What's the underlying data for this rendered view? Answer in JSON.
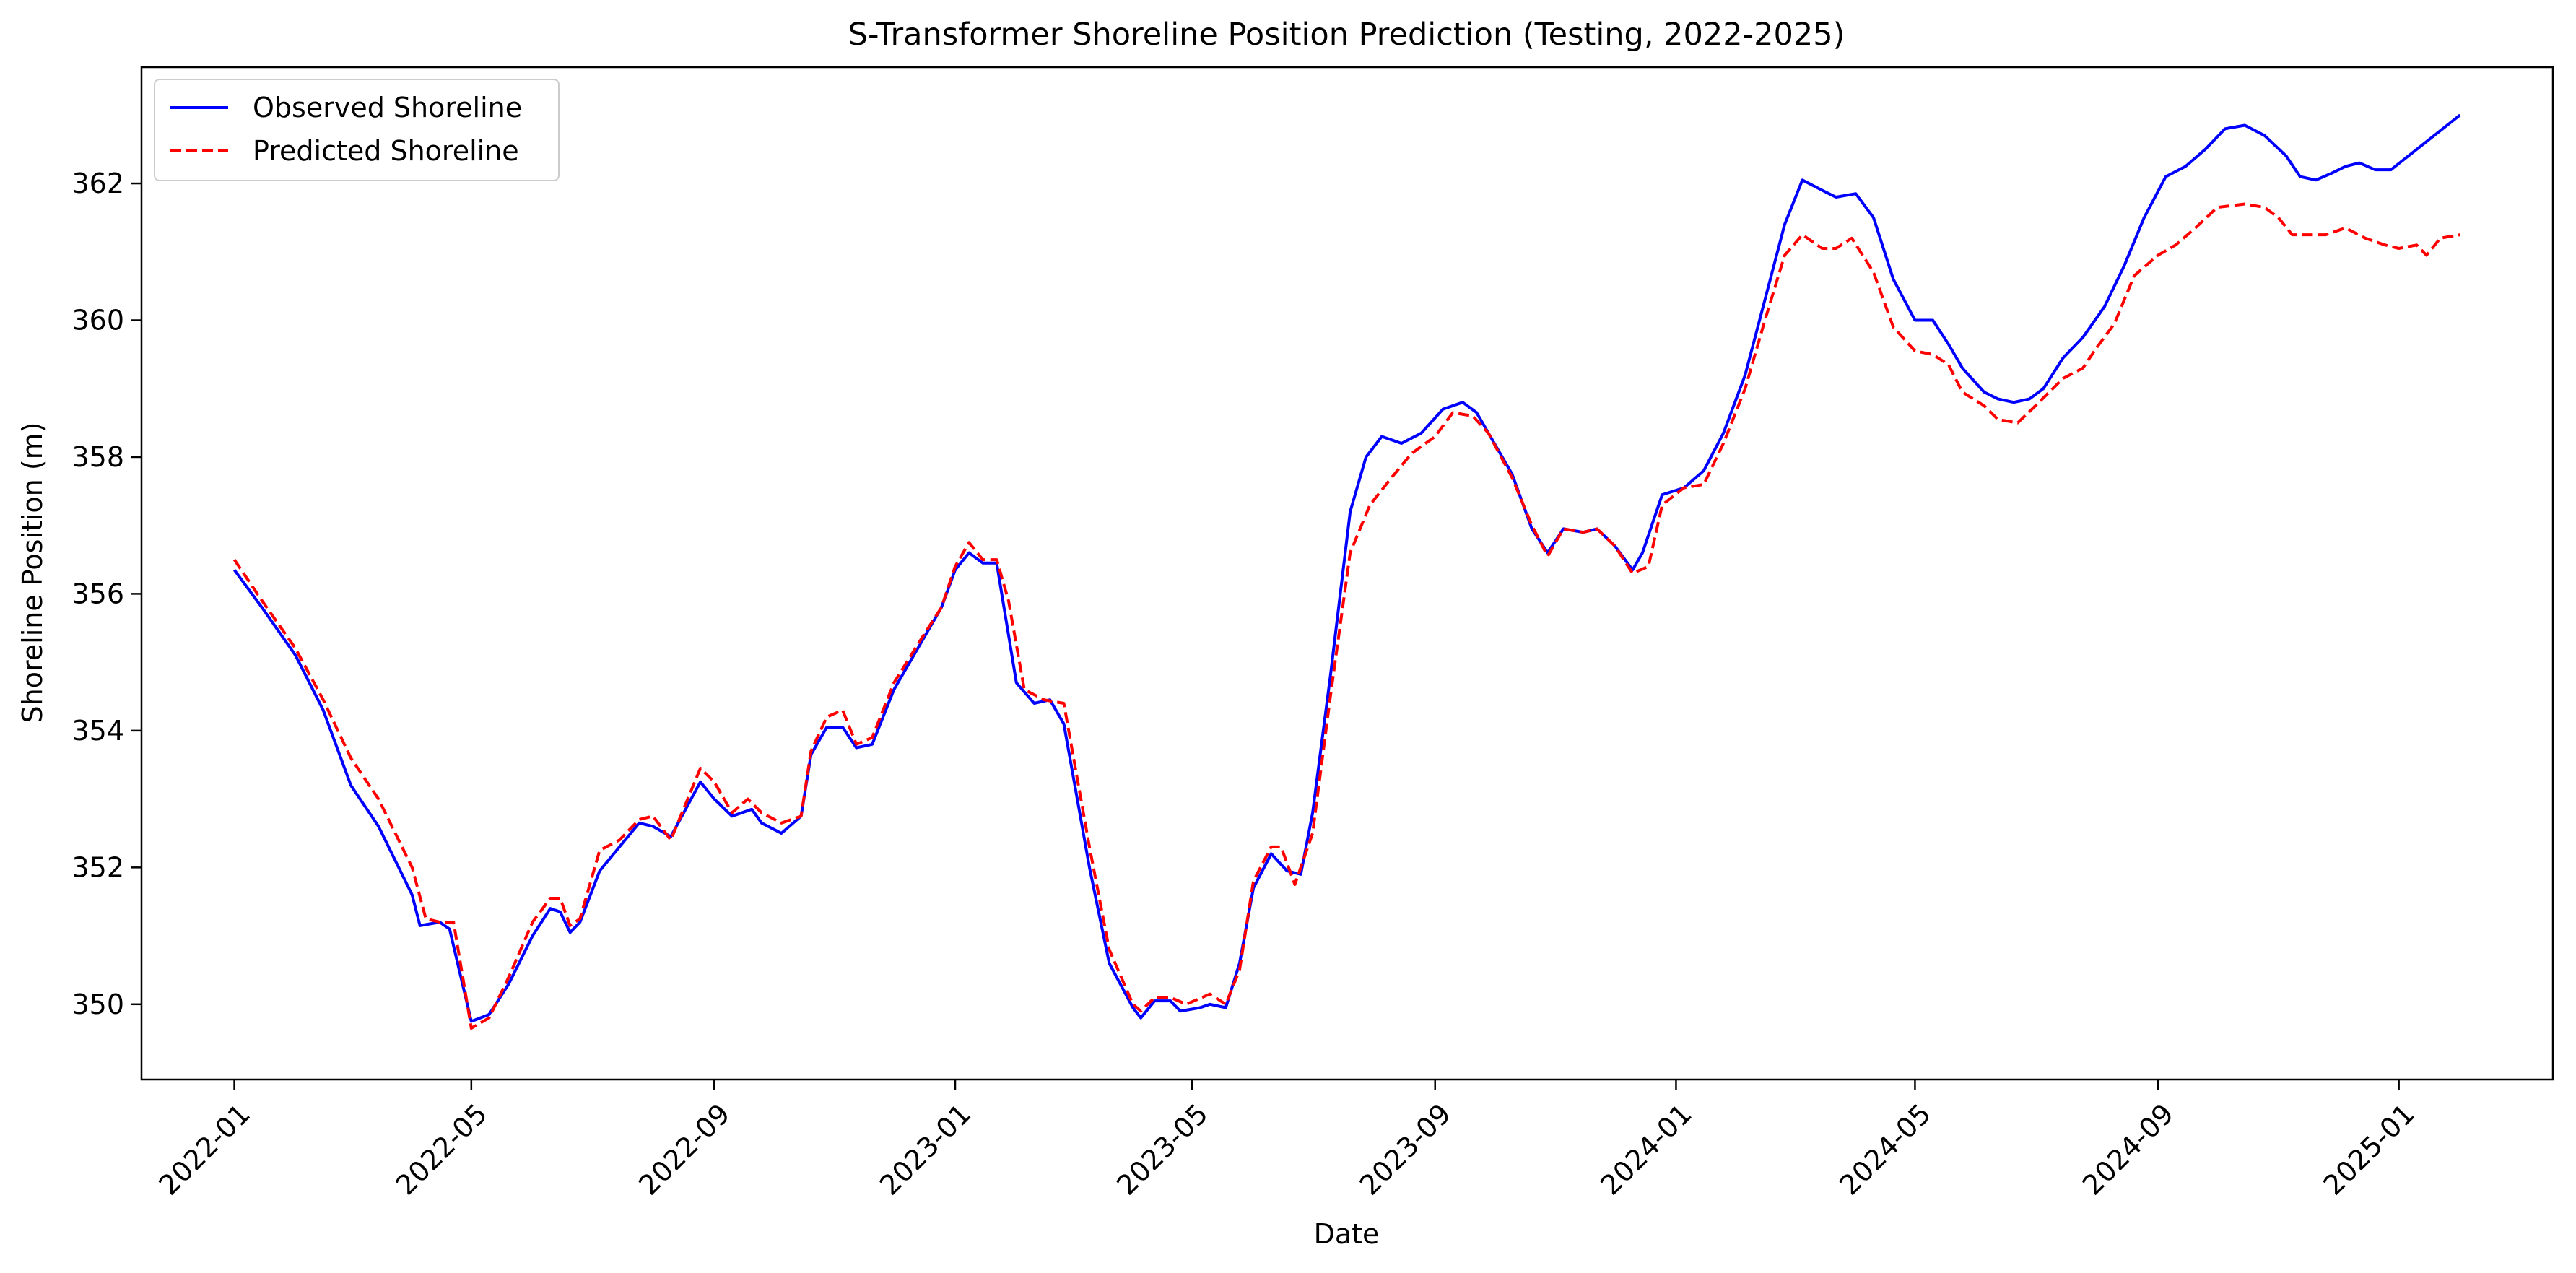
{
  "chart_data": {
    "type": "line",
    "title": "S-Transformer Shoreline Position Prediction (Testing, 2022-2025)",
    "xlabel": "Date",
    "ylabel": "Shoreline Position (m)",
    "xlim": [
      "2021-11-15",
      "2025-03-20"
    ],
    "ylim": [
      348.9,
      363.7
    ],
    "x_ticks": [
      "2022-01",
      "2022-05",
      "2022-09",
      "2023-01",
      "2023-05",
      "2023-09",
      "2024-01",
      "2024-05",
      "2024-09",
      "2025-01"
    ],
    "y_ticks": [
      350,
      352,
      354,
      356,
      358,
      360,
      362
    ],
    "grid": false,
    "legend_position": "upper-left",
    "series": [
      {
        "name": "Observed Shoreline",
        "color": "#0000ff",
        "linestyle": "solid",
        "points": [
          [
            "2022-01-01",
            356.35
          ],
          [
            "2022-01-15",
            355.8
          ],
          [
            "2022-02-01",
            355.1
          ],
          [
            "2022-02-15",
            354.3
          ],
          [
            "2022-03-01",
            353.2
          ],
          [
            "2022-03-15",
            352.6
          ],
          [
            "2022-04-01",
            351.6
          ],
          [
            "2022-04-05",
            351.15
          ],
          [
            "2022-04-15",
            351.2
          ],
          [
            "2022-04-20",
            351.1
          ],
          [
            "2022-05-01",
            349.75
          ],
          [
            "2022-05-10",
            349.85
          ],
          [
            "2022-05-20",
            350.3
          ],
          [
            "2022-06-01",
            351.0
          ],
          [
            "2022-06-10",
            351.4
          ],
          [
            "2022-06-15",
            351.35
          ],
          [
            "2022-06-20",
            351.05
          ],
          [
            "2022-06-25",
            351.2
          ],
          [
            "2022-07-05",
            351.95
          ],
          [
            "2022-07-15",
            352.3
          ],
          [
            "2022-07-25",
            352.65
          ],
          [
            "2022-08-01",
            352.6
          ],
          [
            "2022-08-10",
            352.45
          ],
          [
            "2022-08-25",
            353.25
          ],
          [
            "2022-09-01",
            353.0
          ],
          [
            "2022-09-10",
            352.75
          ],
          [
            "2022-09-20",
            352.85
          ],
          [
            "2022-09-25",
            352.65
          ],
          [
            "2022-10-05",
            352.5
          ],
          [
            "2022-10-15",
            352.75
          ],
          [
            "2022-10-20",
            353.65
          ],
          [
            "2022-10-28",
            354.05
          ],
          [
            "2022-11-05",
            354.05
          ],
          [
            "2022-11-12",
            353.75
          ],
          [
            "2022-11-20",
            353.8
          ],
          [
            "2022-12-01",
            354.6
          ],
          [
            "2022-12-15",
            355.3
          ],
          [
            "2022-12-25",
            355.8
          ],
          [
            "2023-01-01",
            356.35
          ],
          [
            "2023-01-08",
            356.6
          ],
          [
            "2023-01-15",
            356.45
          ],
          [
            "2023-01-22",
            356.45
          ],
          [
            "2023-02-01",
            354.7
          ],
          [
            "2023-02-10",
            354.4
          ],
          [
            "2023-02-18",
            354.45
          ],
          [
            "2023-02-25",
            354.1
          ],
          [
            "2023-03-10",
            352.0
          ],
          [
            "2023-03-20",
            350.6
          ],
          [
            "2023-04-01",
            349.95
          ],
          [
            "2023-04-05",
            349.8
          ],
          [
            "2023-04-12",
            350.05
          ],
          [
            "2023-04-20",
            350.05
          ],
          [
            "2023-04-25",
            349.9
          ],
          [
            "2023-05-05",
            349.95
          ],
          [
            "2023-05-10",
            350.0
          ],
          [
            "2023-05-18",
            349.95
          ],
          [
            "2023-05-25",
            350.6
          ],
          [
            "2023-06-01",
            351.7
          ],
          [
            "2023-06-10",
            352.2
          ],
          [
            "2023-06-18",
            351.95
          ],
          [
            "2023-06-25",
            351.9
          ],
          [
            "2023-07-01",
            352.8
          ],
          [
            "2023-07-10",
            354.8
          ],
          [
            "2023-07-20",
            357.2
          ],
          [
            "2023-07-28",
            358.0
          ],
          [
            "2023-08-05",
            358.3
          ],
          [
            "2023-08-15",
            358.2
          ],
          [
            "2023-08-25",
            358.35
          ],
          [
            "2023-09-05",
            358.7
          ],
          [
            "2023-09-15",
            358.8
          ],
          [
            "2023-09-22",
            358.65
          ],
          [
            "2023-10-01",
            358.2
          ],
          [
            "2023-10-10",
            357.75
          ],
          [
            "2023-10-20",
            356.95
          ],
          [
            "2023-10-28",
            356.6
          ],
          [
            "2023-11-05",
            356.95
          ],
          [
            "2023-11-15",
            356.9
          ],
          [
            "2023-11-22",
            356.95
          ],
          [
            "2023-12-01",
            356.7
          ],
          [
            "2023-12-10",
            356.35
          ],
          [
            "2023-12-15",
            356.6
          ],
          [
            "2023-12-25",
            357.45
          ],
          [
            "2024-01-05",
            357.55
          ],
          [
            "2024-01-15",
            357.8
          ],
          [
            "2024-01-25",
            358.35
          ],
          [
            "2024-02-05",
            359.2
          ],
          [
            "2024-02-15",
            360.3
          ],
          [
            "2024-02-25",
            361.4
          ],
          [
            "2024-03-05",
            362.05
          ],
          [
            "2024-03-15",
            361.9
          ],
          [
            "2024-03-22",
            361.8
          ],
          [
            "2024-04-01",
            361.85
          ],
          [
            "2024-04-10",
            361.5
          ],
          [
            "2024-04-20",
            360.6
          ],
          [
            "2024-05-01",
            360.0
          ],
          [
            "2024-05-10",
            360.0
          ],
          [
            "2024-05-18",
            359.65
          ],
          [
            "2024-05-25",
            359.3
          ],
          [
            "2024-06-05",
            358.95
          ],
          [
            "2024-06-12",
            358.85
          ],
          [
            "2024-06-20",
            358.8
          ],
          [
            "2024-06-28",
            358.85
          ],
          [
            "2024-07-05",
            359.0
          ],
          [
            "2024-07-15",
            359.45
          ],
          [
            "2024-07-25",
            359.75
          ],
          [
            "2024-08-05",
            360.2
          ],
          [
            "2024-08-15",
            360.8
          ],
          [
            "2024-08-25",
            361.5
          ],
          [
            "2024-09-05",
            362.1
          ],
          [
            "2024-09-15",
            362.25
          ],
          [
            "2024-09-25",
            362.5
          ],
          [
            "2024-10-05",
            362.8
          ],
          [
            "2024-10-15",
            362.85
          ],
          [
            "2024-10-25",
            362.7
          ],
          [
            "2024-11-05",
            362.4
          ],
          [
            "2024-11-12",
            362.1
          ],
          [
            "2024-11-20",
            362.05
          ],
          [
            "2024-11-28",
            362.15
          ],
          [
            "2024-12-05",
            362.25
          ],
          [
            "2024-12-12",
            362.3
          ],
          [
            "2024-12-20",
            362.2
          ],
          [
            "2024-12-28",
            362.2
          ],
          [
            "2025-02-01",
            363.0
          ]
        ]
      },
      {
        "name": "Predicted Shoreline",
        "color": "#ff0000",
        "linestyle": "dashed",
        "points": [
          [
            "2022-01-01",
            356.5
          ],
          [
            "2022-01-15",
            355.9
          ],
          [
            "2022-02-01",
            355.2
          ],
          [
            "2022-02-15",
            354.45
          ],
          [
            "2022-03-01",
            353.6
          ],
          [
            "2022-03-15",
            353.0
          ],
          [
            "2022-04-01",
            352.0
          ],
          [
            "2022-04-08",
            351.25
          ],
          [
            "2022-04-15",
            351.2
          ],
          [
            "2022-04-22",
            351.2
          ],
          [
            "2022-05-01",
            349.65
          ],
          [
            "2022-05-10",
            349.8
          ],
          [
            "2022-05-20",
            350.4
          ],
          [
            "2022-06-01",
            351.2
          ],
          [
            "2022-06-10",
            351.55
          ],
          [
            "2022-06-15",
            351.55
          ],
          [
            "2022-06-20",
            351.15
          ],
          [
            "2022-06-25",
            351.25
          ],
          [
            "2022-07-05",
            352.25
          ],
          [
            "2022-07-15",
            352.4
          ],
          [
            "2022-07-25",
            352.7
          ],
          [
            "2022-08-01",
            352.75
          ],
          [
            "2022-08-10",
            352.4
          ],
          [
            "2022-08-25",
            353.45
          ],
          [
            "2022-09-01",
            353.25
          ],
          [
            "2022-09-10",
            352.8
          ],
          [
            "2022-09-18",
            353.0
          ],
          [
            "2022-09-25",
            352.8
          ],
          [
            "2022-10-05",
            352.65
          ],
          [
            "2022-10-15",
            352.75
          ],
          [
            "2022-10-20",
            353.7
          ],
          [
            "2022-10-28",
            354.2
          ],
          [
            "2022-11-05",
            354.3
          ],
          [
            "2022-11-12",
            353.8
          ],
          [
            "2022-11-20",
            353.9
          ],
          [
            "2022-12-01",
            354.7
          ],
          [
            "2022-12-15",
            355.35
          ],
          [
            "2022-12-25",
            355.8
          ],
          [
            "2023-01-01",
            356.4
          ],
          [
            "2023-01-08",
            356.75
          ],
          [
            "2023-01-15",
            356.5
          ],
          [
            "2023-01-22",
            356.5
          ],
          [
            "2023-01-28",
            355.9
          ],
          [
            "2023-02-05",
            354.6
          ],
          [
            "2023-02-15",
            354.45
          ],
          [
            "2023-02-25",
            354.4
          ],
          [
            "2023-03-10",
            352.3
          ],
          [
            "2023-03-20",
            350.8
          ],
          [
            "2023-04-01",
            350.0
          ],
          [
            "2023-04-05",
            349.9
          ],
          [
            "2023-04-12",
            350.1
          ],
          [
            "2023-04-20",
            350.1
          ],
          [
            "2023-04-28",
            350.0
          ],
          [
            "2023-05-10",
            350.15
          ],
          [
            "2023-05-18",
            350.0
          ],
          [
            "2023-05-25",
            350.5
          ],
          [
            "2023-06-01",
            351.8
          ],
          [
            "2023-06-10",
            352.3
          ],
          [
            "2023-06-15",
            352.3
          ],
          [
            "2023-06-22",
            351.75
          ],
          [
            "2023-07-01",
            352.5
          ],
          [
            "2023-07-10",
            354.5
          ],
          [
            "2023-07-20",
            356.6
          ],
          [
            "2023-07-30",
            357.3
          ],
          [
            "2023-08-10",
            357.7
          ],
          [
            "2023-08-20",
            358.05
          ],
          [
            "2023-09-01",
            358.3
          ],
          [
            "2023-09-10",
            358.65
          ],
          [
            "2023-09-20",
            358.6
          ],
          [
            "2023-09-28",
            358.35
          ],
          [
            "2023-10-10",
            357.7
          ],
          [
            "2023-10-20",
            357.0
          ],
          [
            "2023-10-28",
            356.55
          ],
          [
            "2023-11-05",
            356.95
          ],
          [
            "2023-11-15",
            356.9
          ],
          [
            "2023-11-22",
            356.95
          ],
          [
            "2023-12-01",
            356.7
          ],
          [
            "2023-12-10",
            356.3
          ],
          [
            "2023-12-18",
            356.4
          ],
          [
            "2023-12-25",
            357.3
          ],
          [
            "2024-01-05",
            357.55
          ],
          [
            "2024-01-15",
            357.6
          ],
          [
            "2024-01-25",
            358.2
          ],
          [
            "2024-02-05",
            359.0
          ],
          [
            "2024-02-15",
            360.0
          ],
          [
            "2024-02-25",
            360.95
          ],
          [
            "2024-03-05",
            361.25
          ],
          [
            "2024-03-15",
            361.05
          ],
          [
            "2024-03-22",
            361.05
          ],
          [
            "2024-03-30",
            361.2
          ],
          [
            "2024-04-10",
            360.7
          ],
          [
            "2024-04-20",
            359.9
          ],
          [
            "2024-05-01",
            359.55
          ],
          [
            "2024-05-10",
            359.5
          ],
          [
            "2024-05-18",
            359.35
          ],
          [
            "2024-05-25",
            358.95
          ],
          [
            "2024-06-05",
            358.75
          ],
          [
            "2024-06-12",
            358.55
          ],
          [
            "2024-06-22",
            358.5
          ],
          [
            "2024-07-01",
            358.75
          ],
          [
            "2024-07-15",
            359.15
          ],
          [
            "2024-07-25",
            359.3
          ],
          [
            "2024-08-01",
            359.6
          ],
          [
            "2024-08-10",
            359.95
          ],
          [
            "2024-08-20",
            360.65
          ],
          [
            "2024-09-01",
            360.95
          ],
          [
            "2024-09-10",
            361.1
          ],
          [
            "2024-09-20",
            361.35
          ],
          [
            "2024-10-01",
            361.65
          ],
          [
            "2024-10-15",
            361.7
          ],
          [
            "2024-10-25",
            361.65
          ],
          [
            "2024-11-01",
            361.5
          ],
          [
            "2024-11-08",
            361.25
          ],
          [
            "2024-11-15",
            361.25
          ],
          [
            "2024-11-25",
            361.25
          ],
          [
            "2024-12-05",
            361.35
          ],
          [
            "2024-12-15",
            361.2
          ],
          [
            "2024-12-25",
            361.1
          ],
          [
            "2025-01-01",
            361.05
          ],
          [
            "2025-01-10",
            361.1
          ],
          [
            "2025-01-15",
            360.95
          ],
          [
            "2025-01-22",
            361.2
          ],
          [
            "2025-02-01",
            361.25
          ]
        ]
      }
    ]
  }
}
